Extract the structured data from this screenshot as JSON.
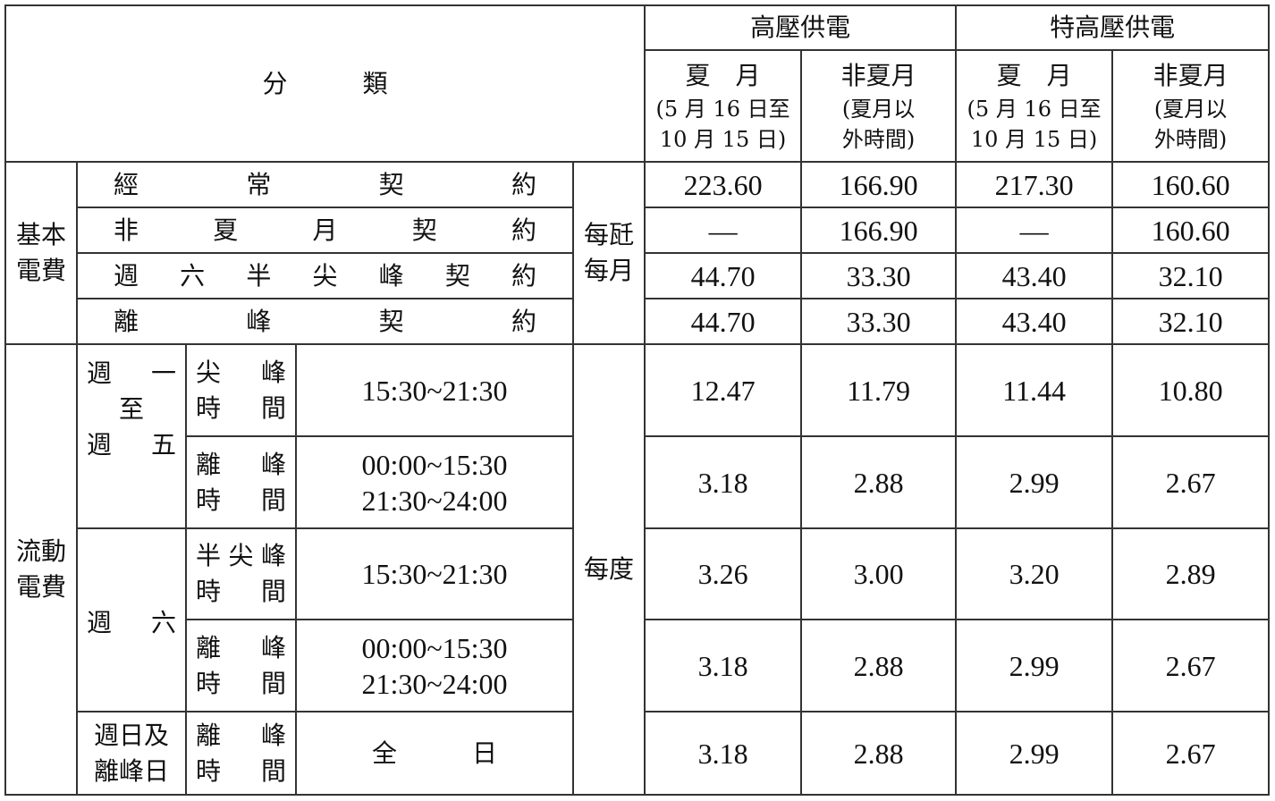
{
  "header": {
    "category": "分　　　類",
    "high_voltage": "高壓供電",
    "extra_high_voltage": "特高壓供電",
    "summer": "夏　月",
    "summer_period_1": "(5 月 16 日至",
    "summer_period_2": "10 月 15 日)",
    "non_summer": "非夏月",
    "non_summer_period_1": "(夏月以",
    "non_summer_period_2": "外時間)"
  },
  "basic": {
    "label_1": "基本",
    "label_2": "電費",
    "unit_1": "每瓩",
    "unit_2": "每月",
    "rows": [
      {
        "name": "經常契約",
        "values": [
          "223.60",
          "166.90",
          "217.30",
          "160.60"
        ]
      },
      {
        "name": "非夏月契約",
        "values": [
          "—",
          "166.90",
          "—",
          "160.60"
        ]
      },
      {
        "name": "週六半尖峰契約",
        "values": [
          "44.70",
          "33.30",
          "43.40",
          "32.10"
        ]
      },
      {
        "name": "離峰契約",
        "values": [
          "44.70",
          "33.30",
          "43.40",
          "32.10"
        ]
      }
    ]
  },
  "flow": {
    "label_1": "流動",
    "label_2": "電費",
    "unit": "每度",
    "weekday": {
      "l1": "週　一",
      "l2": "至",
      "l3": "週　五"
    },
    "saturday": "週　六",
    "sunday": {
      "l1": "週日及",
      "l2": "離峰日"
    },
    "rows": [
      {
        "period_1": "尖峰",
        "period_2": "時間",
        "time_1": "15:30~21:30",
        "time_2": "",
        "values": [
          "12.47",
          "11.79",
          "11.44",
          "10.80"
        ]
      },
      {
        "period_1": "離峰",
        "period_2": "時間",
        "time_1": "00:00~15:30",
        "time_2": "21:30~24:00",
        "values": [
          "3.18",
          "2.88",
          "2.99",
          "2.67"
        ]
      },
      {
        "period_1": "半尖峰",
        "period_2": "時間",
        "time_1": "15:30~21:30",
        "time_2": "",
        "values": [
          "3.26",
          "3.00",
          "3.20",
          "2.89"
        ]
      },
      {
        "period_1": "離峰",
        "period_2": "時間",
        "time_1": "00:00~15:30",
        "time_2": "21:30~24:00",
        "values": [
          "3.18",
          "2.88",
          "2.99",
          "2.67"
        ]
      },
      {
        "period_1": "離峰",
        "period_2": "時間",
        "time_1": "全　　　日",
        "time_2": "",
        "values": [
          "3.18",
          "2.88",
          "2.99",
          "2.67"
        ]
      }
    ]
  }
}
